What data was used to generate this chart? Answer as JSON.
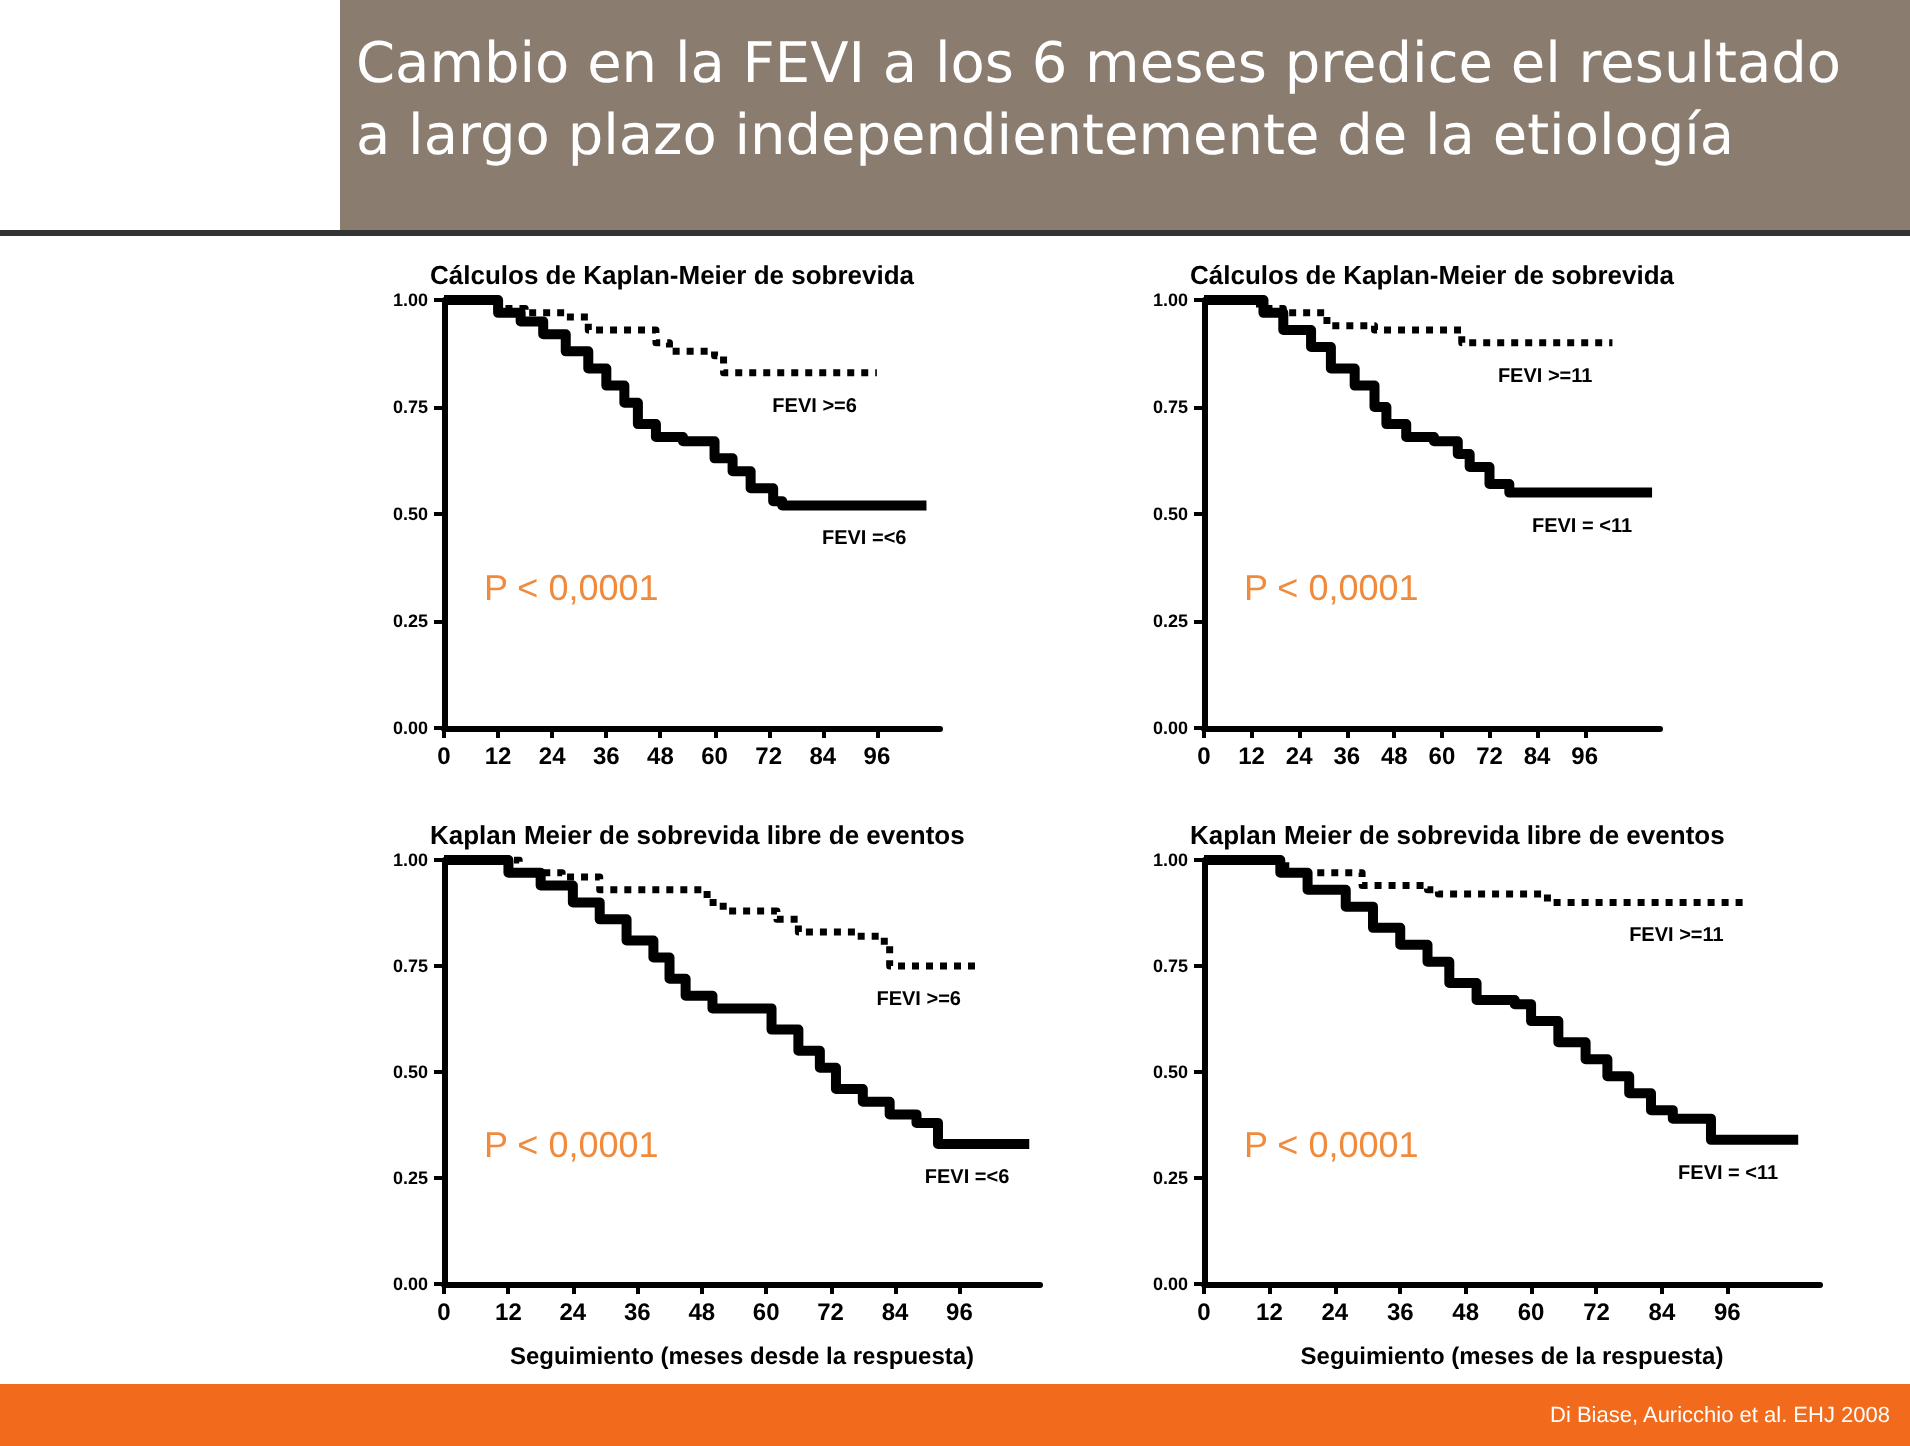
{
  "chart_data": [
    {
      "type": "step",
      "title": "Cálculos de Kaplan-Meier de sobrevida",
      "annotations": [
        "P < 0,0001",
        "Cambio en la FEVI a los 6 meses predice el resultado a largo plazo independientemente de la etiología"
      ],
      "xlim": [
        0,
        110
      ],
      "ylim": [
        0,
        1
      ],
      "xticks": [
        0,
        12,
        24,
        36,
        48,
        60,
        72,
        84,
        96
      ],
      "yticks": [
        {
          "value": 0,
          "label": "0.00"
        },
        {
          "value": 0.25,
          "label": "0.25"
        },
        {
          "value": 0.5,
          "label": "0.50"
        },
        {
          "value": 0.75,
          "label": "0.75"
        },
        {
          "value": 1,
          "label": "1.00"
        }
      ],
      "grid": false,
      "legend": false,
      "marker": "none",
      "series": [
        {
          "name": "FEVI >=6",
          "color": "#000000",
          "line_style": "dotted",
          "x": [
            0,
            7,
            12,
            18,
            27,
            32,
            42,
            47,
            50,
            60,
            62,
            96
          ],
          "values": [
            1.0,
            1.0,
            0.98,
            0.97,
            0.96,
            0.93,
            0.93,
            0.9,
            0.88,
            0.87,
            0.83,
            0.83
          ]
        },
        {
          "name": "FEVI =<6",
          "color": "#000000",
          "line_style": "solid",
          "x": [
            0,
            5,
            12,
            17,
            22,
            27,
            32,
            36,
            40,
            43,
            47,
            53,
            60,
            64,
            68,
            73,
            75,
            107
          ],
          "values": [
            1.0,
            1.0,
            0.97,
            0.95,
            0.92,
            0.88,
            0.84,
            0.8,
            0.76,
            0.71,
            0.68,
            0.67,
            0.63,
            0.6,
            0.56,
            0.53,
            0.52,
            0.52
          ]
        }
      ]
    },
    {
      "type": "step",
      "title": "Cálculos de Kaplan-Meier de sobrevida",
      "annotations": [
        "P < 0,0001"
      ],
      "xlim": [
        0,
        115
      ],
      "ylim": [
        0,
        1
      ],
      "xticks": [
        0,
        12,
        24,
        36,
        48,
        60,
        72,
        84,
        96
      ],
      "yticks": [
        {
          "value": 0,
          "label": "0.00"
        },
        {
          "value": 0.25,
          "label": "0.25"
        },
        {
          "value": 0.5,
          "label": "0.50"
        },
        {
          "value": 0.75,
          "label": "0.75"
        },
        {
          "value": 1,
          "label": "1.00"
        }
      ],
      "grid": false,
      "legend": false,
      "marker": "none",
      "series": [
        {
          "name": "FEVI >=11",
          "color": "#000000",
          "line_style": "dotted",
          "x": [
            0,
            10,
            14,
            20,
            31,
            43,
            65,
            103
          ],
          "values": [
            1.0,
            1.0,
            0.98,
            0.97,
            0.94,
            0.93,
            0.9,
            0.9
          ]
        },
        {
          "name": "FEVI = <11",
          "color": "#000000",
          "line_style": "solid",
          "x": [
            0,
            10,
            15,
            20,
            27,
            32,
            38,
            43,
            46,
            51,
            58,
            64,
            67,
            72,
            77,
            113
          ],
          "values": [
            1.0,
            1.0,
            0.97,
            0.93,
            0.89,
            0.84,
            0.8,
            0.75,
            0.71,
            0.68,
            0.67,
            0.64,
            0.61,
            0.57,
            0.55,
            0.55
          ]
        }
      ]
    },
    {
      "type": "step",
      "title": "Kaplan Meier de sobrevida libre de eventos",
      "xlabel": "Seguimiento (meses desde la respuesta)",
      "annotations": [
        "P < 0,0001"
      ],
      "xlim": [
        0,
        111
      ],
      "ylim": [
        0,
        1
      ],
      "xticks": [
        0,
        12,
        24,
        36,
        48,
        60,
        72,
        84,
        96
      ],
      "yticks": [
        {
          "value": 0,
          "label": "0.00"
        },
        {
          "value": 0.25,
          "label": "0.25"
        },
        {
          "value": 0.5,
          "label": "0.50"
        },
        {
          "value": 0.75,
          "label": "0.75"
        },
        {
          "value": 1,
          "label": "1.00"
        }
      ],
      "grid": false,
      "legend": false,
      "marker": "none",
      "series": [
        {
          "name": "FEVI >=6",
          "color": "#000000",
          "line_style": "dotted",
          "x": [
            0,
            10,
            14,
            22,
            29,
            42,
            49,
            52,
            62,
            66,
            77,
            82,
            83,
            100
          ],
          "values": [
            1.0,
            1.0,
            0.97,
            0.96,
            0.93,
            0.93,
            0.9,
            0.88,
            0.86,
            0.83,
            0.82,
            0.8,
            0.75,
            0.75
          ]
        },
        {
          "name": "FEVI =<6",
          "color": "#000000",
          "line_style": "solid",
          "x": [
            0,
            7,
            12,
            18,
            24,
            29,
            34,
            39,
            42,
            45,
            50,
            56,
            61,
            66,
            70,
            73,
            78,
            83,
            88,
            92,
            109
          ],
          "values": [
            1.0,
            1.0,
            0.97,
            0.94,
            0.9,
            0.86,
            0.81,
            0.77,
            0.72,
            0.68,
            0.65,
            0.65,
            0.6,
            0.55,
            0.51,
            0.46,
            0.43,
            0.4,
            0.38,
            0.33,
            0.33
          ]
        }
      ]
    },
    {
      "type": "step",
      "title": "Kaplan Meier de sobrevida libre de eventos",
      "xlabel": "Seguimiento (meses de la respuesta)",
      "annotations": [
        "P < 0,0001",
        "Di Biase, Auricchio et al. EHJ 2008"
      ],
      "xlim": [
        0,
        113
      ],
      "ylim": [
        0,
        1
      ],
      "xticks": [
        0,
        12,
        24,
        36,
        48,
        60,
        72,
        84,
        96
      ],
      "yticks": [
        {
          "value": 0,
          "label": "0.00"
        },
        {
          "value": 0.25,
          "label": "0.25"
        },
        {
          "value": 0.5,
          "label": "0.50"
        },
        {
          "value": 0.75,
          "label": "0.75"
        },
        {
          "value": 1,
          "label": "1.00"
        }
      ],
      "grid": false,
      "legend": false,
      "marker": "none",
      "series": [
        {
          "name": "FEVI >=11",
          "color": "#000000",
          "line_style": "dotted",
          "x": [
            0,
            10,
            15,
            29,
            41,
            43,
            63,
            99
          ],
          "values": [
            1.0,
            1.0,
            0.97,
            0.94,
            0.93,
            0.92,
            0.9,
            0.9
          ]
        },
        {
          "name": "FEVI = <11",
          "color": "#000000",
          "line_style": "solid",
          "x": [
            0,
            9,
            14,
            19,
            26,
            31,
            36,
            41,
            45,
            50,
            57,
            60,
            65,
            70,
            74,
            78,
            82,
            86,
            93,
            109
          ],
          "values": [
            1.0,
            1.0,
            0.97,
            0.93,
            0.89,
            0.84,
            0.8,
            0.76,
            0.71,
            0.67,
            0.66,
            0.62,
            0.57,
            0.53,
            0.49,
            0.45,
            0.41,
            0.39,
            0.34,
            0.34
          ]
        }
      ]
    }
  ]
}
